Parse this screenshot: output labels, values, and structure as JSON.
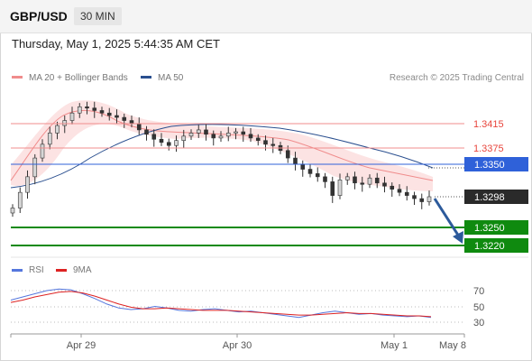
{
  "header": {
    "symbol": "GBP/USD",
    "timeframe": "30 MIN"
  },
  "datetime": "Thursday, May 1, 2025 5:44:35 AM CET",
  "legend": {
    "ma20_label": "MA 20 + Bollinger Bands",
    "ma50_label": "MA 50",
    "credit": "Research © 2025 Trading Central"
  },
  "levels": {
    "resistance_2": "1.3415",
    "resistance_1": "1.3375",
    "ma50_value": "1.3350",
    "last_price": "1.3298",
    "support_1": "1.3250",
    "support_2": "1.3220"
  },
  "rsi_legend": {
    "rsi_label": "RSI",
    "ma_label": "9MA"
  },
  "rsi_levels": [
    "70",
    "50",
    "30"
  ],
  "x_axis": [
    "Apr 29",
    "Apr 30",
    "May 1",
    "May 8"
  ],
  "colors": {
    "resistance": "#e8453c",
    "ma50": "#2f61d9",
    "last": "#2a2a2a",
    "support": "#0f8a0f",
    "arrow": "#2c5a9b",
    "candle_up": "#d6d6d6",
    "candle_down": "#333333"
  },
  "chart_data": {
    "type": "candlestick",
    "price_close": [
      1.328,
      1.3305,
      1.333,
      1.336,
      1.3382,
      1.34,
      1.3412,
      1.342,
      1.3432,
      1.3442,
      1.344,
      1.3436,
      1.3432,
      1.3428,
      1.3425,
      1.342,
      1.3415,
      1.3405,
      1.3398,
      1.339,
      1.3385,
      1.338,
      1.3388,
      1.3395,
      1.34,
      1.3405,
      1.3398,
      1.3392,
      1.3395,
      1.34,
      1.3402,
      1.3398,
      1.3392,
      1.3388,
      1.3382,
      1.338,
      1.3372,
      1.336,
      1.335,
      1.3342,
      1.3335,
      1.333,
      1.3322,
      1.33,
      1.3325,
      1.333,
      1.332,
      1.3318,
      1.3328,
      1.332,
      1.3315,
      1.331,
      1.3305,
      1.33,
      1.3295,
      1.329,
      1.3298
    ],
    "ma20_last": 1.335,
    "rsi": [
      58,
      62,
      66,
      70,
      72,
      71,
      66,
      60,
      53,
      48,
      46,
      47,
      50,
      48,
      45,
      44,
      46,
      47,
      45,
      43,
      44,
      42,
      40,
      38,
      36,
      39,
      42,
      44,
      42,
      40,
      41,
      39,
      38,
      37,
      38,
      36
    ],
    "rsi_ma": [
      55,
      58,
      62,
      65,
      68,
      69,
      67,
      63,
      58,
      53,
      49,
      47,
      47,
      48,
      47,
      46,
      45,
      45,
      45,
      44,
      43,
      42,
      41,
      40,
      39,
      39,
      40,
      41,
      42,
      41,
      41,
      40,
      39,
      38,
      38,
      37
    ],
    "rsi_ylim": [
      20,
      80
    ],
    "series": [
      {
        "name": "RSI",
        "color": "#5577dd"
      },
      {
        "name": "9MA",
        "color": "#dd2222"
      }
    ],
    "xlabel": "",
    "ylabel": ""
  }
}
